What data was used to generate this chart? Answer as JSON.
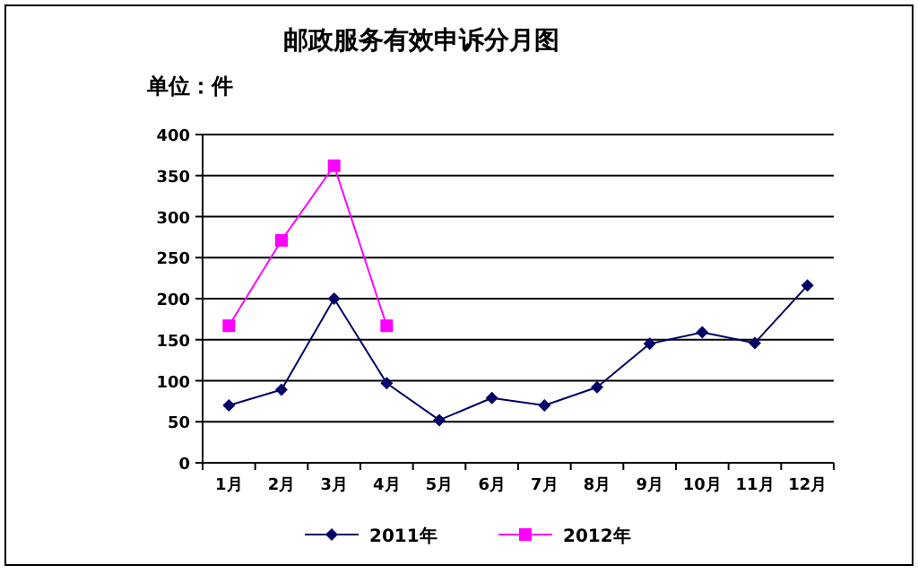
{
  "chart_data": {
    "type": "line",
    "title": "邮政服务有效申诉分月图",
    "annotations": [
      "单位：件"
    ],
    "categories": [
      "1月",
      "2月",
      "3月",
      "4月",
      "5月",
      "6月",
      "7月",
      "8月",
      "9月",
      "10月",
      "11月",
      "12月"
    ],
    "series": [
      {
        "name": "2011年",
        "color": "#000066",
        "marker": "diamond",
        "values": [
          70,
          89,
          200,
          97,
          52,
          79,
          70,
          92,
          145,
          159,
          146,
          216
        ]
      },
      {
        "name": "2012年",
        "color": "#ff00ff",
        "marker": "square",
        "values": [
          167,
          271,
          362,
          167,
          null,
          null,
          null,
          null,
          null,
          null,
          null,
          null
        ]
      }
    ],
    "ylim": [
      0,
      400
    ],
    "yticks": [
      0,
      50,
      100,
      150,
      200,
      250,
      300,
      350,
      400
    ],
    "grid": "y",
    "legend": "bottom",
    "line_style": "solid"
  }
}
